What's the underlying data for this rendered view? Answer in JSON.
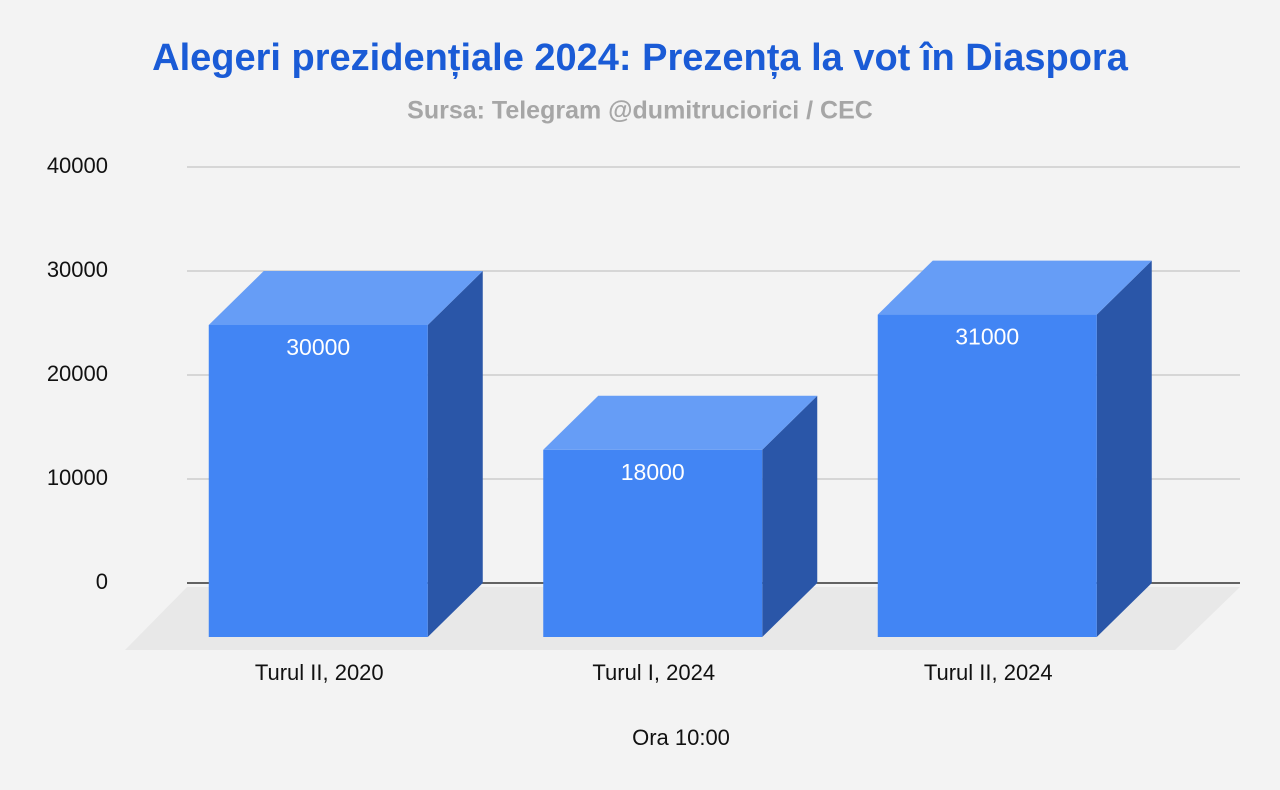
{
  "chart_data": {
    "type": "bar",
    "title": "Alegeri prezidențiale 2024: Prezența la vot în Diaspora",
    "subtitle": "Sursa: Telegram @dumitruciorici / CEC",
    "x_label": "Ora 10:00",
    "categories": [
      "Turul II, 2020",
      "Turul I, 2024",
      "Turul II, 2024"
    ],
    "values": [
      30000,
      18000,
      31000
    ],
    "color": "#4285f4",
    "ylim": [
      0,
      40000
    ],
    "yticks": [
      0,
      10000,
      20000,
      30000,
      40000
    ],
    "grid": true
  }
}
